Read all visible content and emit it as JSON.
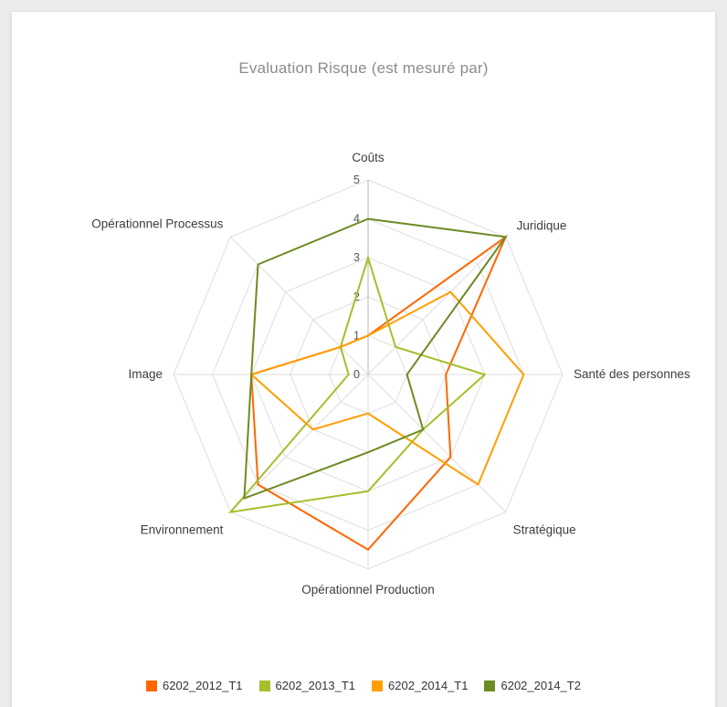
{
  "page": {
    "background_color": "#ececec",
    "card_background_color": "#ffffff"
  },
  "chart": {
    "title": "Evaluation Risque (est mesuré par)",
    "title_color": "#8c8c8c"
  },
  "chart_data": {
    "type": "radar",
    "title": "Evaluation Risque (est mesuré par)",
    "categories": [
      "Coûts",
      "Juridique",
      "Santé des personnes",
      "Stratégique",
      "Opérationnel Production",
      "Environnement",
      "Image",
      "Opérationnel Processus"
    ],
    "axis_range": [
      0,
      5
    ],
    "axis_ticks": [
      "0",
      "1",
      "2",
      "3",
      "4",
      "5"
    ],
    "grid": true,
    "grid_rings": 5,
    "grid_color": "#dedede",
    "axis_line_color": "#b5b5b5",
    "tick_color": "#555555",
    "label_color": "#3d3d3d",
    "legend_position": "bottom",
    "series": [
      {
        "name": "6202_2012_T1",
        "color": "#ff6600",
        "values": [
          1,
          5,
          2,
          3,
          4.5,
          4,
          3,
          1
        ]
      },
      {
        "name": "6202_2013_T1",
        "color": "#a5bf2a",
        "values": [
          3,
          1,
          3,
          2,
          3,
          5,
          0.5,
          1
        ]
      },
      {
        "name": "6202_2014_T1",
        "color": "#ff9e00",
        "values": [
          1,
          3,
          4,
          4,
          1,
          2,
          3,
          1
        ]
      },
      {
        "name": "6202_2014_T2",
        "color": "#6d8b22",
        "values": [
          4,
          5,
          1,
          2,
          2,
          4.5,
          3,
          4
        ]
      }
    ]
  }
}
